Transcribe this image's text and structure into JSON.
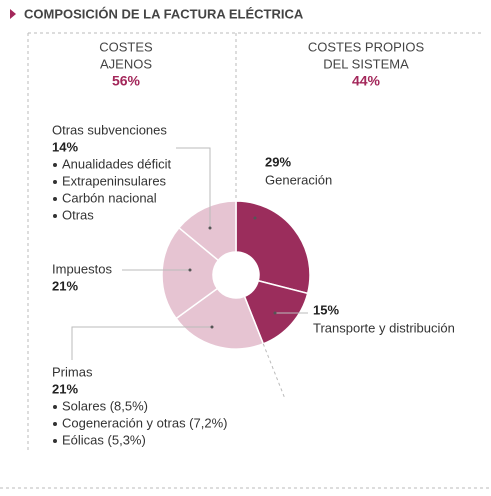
{
  "chart_data": {
    "type": "donut",
    "title": "COMPOSICIÓN DE LA FACTURA ELÉCTRICA",
    "groups": [
      {
        "name_lines": [
          "COSTES",
          "AJENOS"
        ],
        "value": 56,
        "value_label": "56%"
      },
      {
        "name_lines": [
          "COSTES PROPIOS",
          "DEL SISTEMA"
        ],
        "value": 44,
        "value_label": "44%"
      }
    ],
    "categories": [
      "Generación",
      "Transporte y distribución",
      "Primas",
      "Impuestos",
      "Otras subvenciones"
    ],
    "values": [
      29,
      15,
      21,
      21,
      14
    ],
    "value_labels": [
      "29%",
      "15%",
      "21%",
      "21%",
      "14%"
    ],
    "colors": [
      "#9b2d5c",
      "#9b2d5c",
      "#e6c4d2",
      "#e6c4d2",
      "#e6c4d2"
    ],
    "details": [
      [],
      [],
      [
        "Solares (8,5%)",
        "Cogeneración y otras (7,2%)",
        "Eólicas (5,3%)"
      ],
      [],
      [
        "Anualidades déficit",
        "Extrapeninsulares",
        "Carbón nacional",
        "Otras"
      ]
    ]
  }
}
